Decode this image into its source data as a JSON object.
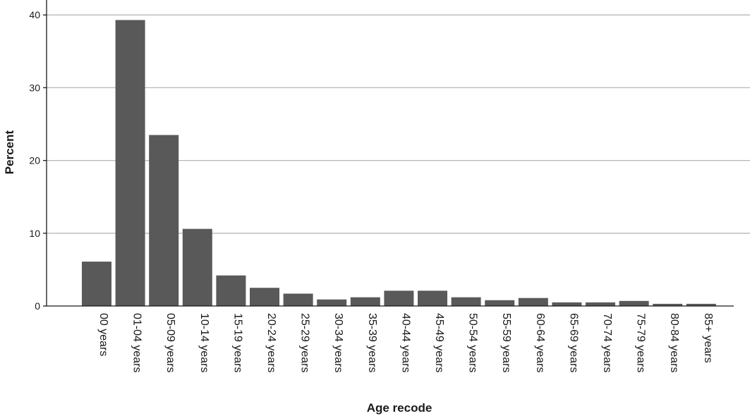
{
  "chart_data": {
    "type": "bar",
    "xlabel": "Age recode",
    "ylabel": "Percent",
    "ylim": [
      0,
      42
    ],
    "yticks": [
      0,
      10,
      20,
      30,
      40
    ],
    "grid": true,
    "bar_color": "#595959",
    "gridline_color": "#b7b7b7",
    "categories": [
      "00 years",
      "01-04 years",
      "05-09 years",
      "10-14 years",
      "15-19 years",
      "20-24 years",
      "25-29 years",
      "30-34 years",
      "35-39 years",
      "40-44 years",
      "45-49 years",
      "50-54 years",
      "55-59 years",
      "60-64 years",
      "65-69 years",
      "70-74 years",
      "75-79 years",
      "80-84 years",
      "85+ years"
    ],
    "values": [
      6.1,
      39.3,
      23.5,
      10.6,
      4.2,
      2.5,
      1.7,
      0.9,
      1.2,
      2.1,
      2.1,
      1.2,
      0.8,
      1.1,
      0.5,
      0.5,
      0.7,
      0.3,
      0.3
    ]
  }
}
